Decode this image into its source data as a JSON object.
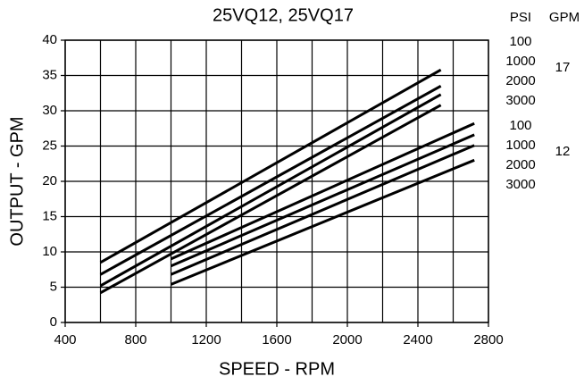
{
  "chart_data": {
    "type": "line",
    "title": "25VQ12, 25VQ17",
    "xlabel": "SPEED - RPM",
    "ylabel": "OUTPUT - GPM",
    "xlim": [
      400,
      2800
    ],
    "xticks": [
      400,
      800,
      1200,
      1600,
      2000,
      2400,
      2800
    ],
    "xminor": [
      600,
      1000,
      1400,
      1800,
      2200,
      2600
    ],
    "ylim": [
      0,
      40
    ],
    "yticks": [
      0,
      5,
      10,
      15,
      20,
      25,
      30,
      35,
      40
    ],
    "grid": true,
    "color": "#000000",
    "legend_headers": [
      "PSI",
      "GPM"
    ],
    "legend_groups": [
      {
        "gpm": "17",
        "series": [
          0,
          1,
          2,
          3
        ]
      },
      {
        "gpm": "12",
        "series": [
          4,
          5,
          6,
          7
        ]
      }
    ],
    "series": [
      {
        "name": "100",
        "x": [
          600,
          2530
        ],
        "values": [
          8.5,
          35.8
        ]
      },
      {
        "name": "1000",
        "x": [
          600,
          2530
        ],
        "values": [
          6.8,
          33.5
        ]
      },
      {
        "name": "2000",
        "x": [
          600,
          2530
        ],
        "values": [
          5.2,
          32.3
        ]
      },
      {
        "name": "3000",
        "x": [
          600,
          2530
        ],
        "values": [
          4.2,
          30.8
        ]
      },
      {
        "name": "100",
        "x": [
          1000,
          2720
        ],
        "values": [
          9.0,
          28.2
        ]
      },
      {
        "name": "1000",
        "x": [
          1000,
          2720
        ],
        "values": [
          8.0,
          26.6
        ]
      },
      {
        "name": "2000",
        "x": [
          1000,
          2720
        ],
        "values": [
          6.8,
          25.1
        ]
      },
      {
        "name": "3000",
        "x": [
          1000,
          2720
        ],
        "values": [
          5.4,
          23.0
        ]
      }
    ]
  }
}
